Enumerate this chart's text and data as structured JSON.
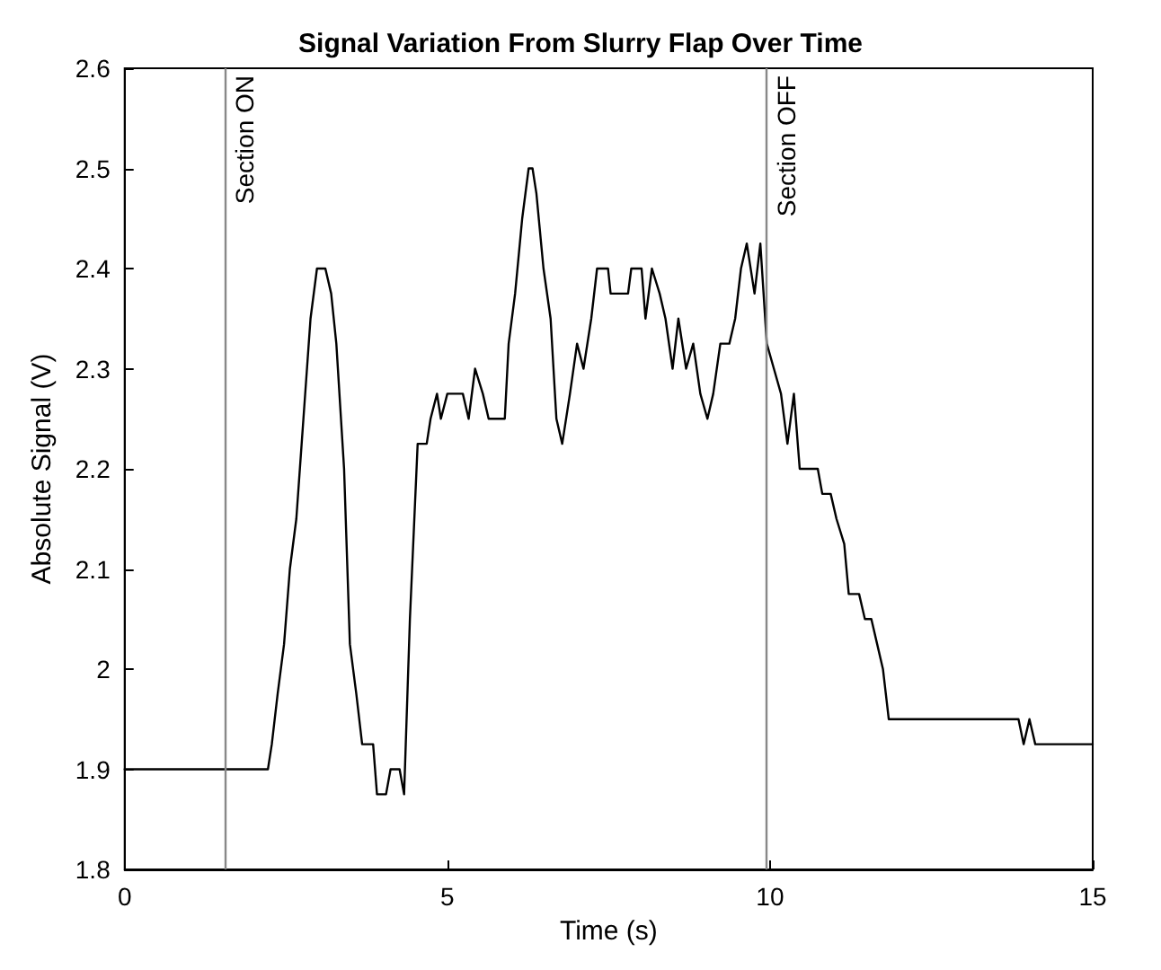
{
  "chart_data": {
    "type": "line",
    "title": "Signal Variation From Slurry Flap Over Time",
    "xlabel": "Time (s)",
    "ylabel": "Absolute Signal (V)",
    "x": [
      0,
      2.22,
      2.28,
      2.37,
      2.47,
      2.56,
      2.66,
      2.77,
      2.88,
      2.98,
      3.11,
      3.2,
      3.28,
      3.4,
      3.49,
      3.59,
      3.68,
      3.85,
      3.91,
      4.05,
      4.12,
      4.26,
      4.33,
      4.42,
      4.54,
      4.68,
      4.74,
      4.84,
      4.9,
      5.0,
      5.1,
      5.24,
      5.33,
      5.43,
      5.55,
      5.64,
      5.89,
      5.95,
      6.05,
      6.16,
      6.26,
      6.32,
      6.38,
      6.49,
      6.6,
      6.69,
      6.78,
      6.9,
      7.01,
      7.11,
      7.23,
      7.32,
      7.49,
      7.53,
      7.8,
      7.85,
      8.01,
      8.07,
      8.17,
      8.29,
      8.38,
      8.49,
      8.58,
      8.7,
      8.81,
      8.92,
      9.03,
      9.12,
      9.23,
      9.37,
      9.46,
      9.55,
      9.64,
      9.76,
      9.85,
      9.95,
      10.06,
      10.17,
      10.27,
      10.37,
      10.46,
      10.74,
      10.81,
      10.94,
      11.03,
      11.15,
      11.22,
      11.38,
      11.47,
      11.57,
      11.66,
      11.75,
      11.84,
      13.85,
      13.93,
      14.02,
      14.11,
      15
    ],
    "series": [
      {
        "color": "#000000",
        "values": [
          1.9,
          1.9,
          1.925,
          1.975,
          2.025,
          2.1,
          2.15,
          2.25,
          2.35,
          2.4,
          2.4,
          2.375,
          2.325,
          2.2,
          2.025,
          1.975,
          1.925,
          1.925,
          1.875,
          1.875,
          1.9,
          1.9,
          1.875,
          2.05,
          2.225,
          2.225,
          2.25,
          2.275,
          2.25,
          2.275,
          2.275,
          2.275,
          2.25,
          2.3,
          2.275,
          2.25,
          2.25,
          2.325,
          2.375,
          2.45,
          2.5,
          2.5,
          2.475,
          2.4,
          2.35,
          2.25,
          2.225,
          2.275,
          2.325,
          2.3,
          2.35,
          2.4,
          2.4,
          2.375,
          2.375,
          2.4,
          2.4,
          2.35,
          2.4,
          2.375,
          2.35,
          2.3,
          2.35,
          2.3,
          2.325,
          2.275,
          2.25,
          2.275,
          2.325,
          2.325,
          2.35,
          2.4,
          2.425,
          2.375,
          2.425,
          2.325,
          2.3,
          2.275,
          2.225,
          2.275,
          2.2,
          2.2,
          2.175,
          2.175,
          2.15,
          2.125,
          2.075,
          2.075,
          2.05,
          2.05,
          2.025,
          2,
          1.95,
          1.95,
          1.925,
          1.95,
          1.925,
          1.925
        ]
      }
    ],
    "xlim": [
      0,
      15
    ],
    "xticks": [
      0,
      5,
      10,
      15
    ],
    "ylim": [
      1.8,
      2.6
    ],
    "yticks": [
      1.8,
      1.9,
      2,
      2.1,
      2.2,
      2.3,
      2.4,
      2.5,
      2.6
    ],
    "grid": false,
    "marker": "none",
    "line_style": "solid",
    "ref_lines": [
      {
        "axis": "x",
        "value": 1.55,
        "label": "Section ON",
        "color": "#888888"
      },
      {
        "axis": "x",
        "value": 9.95,
        "label": "Section OFF",
        "color": "#888888"
      }
    ]
  }
}
